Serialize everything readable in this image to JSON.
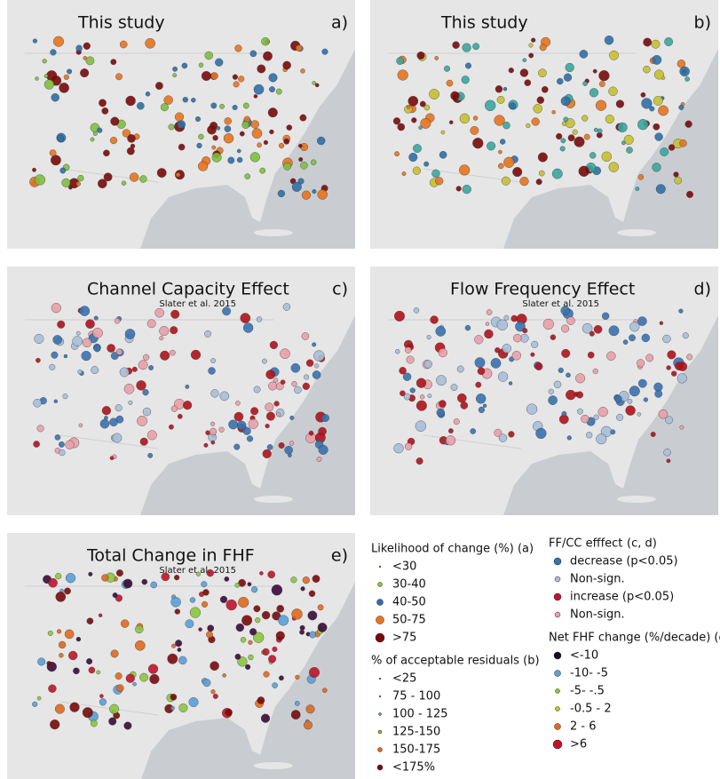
{
  "panels": [
    {
      "title": "This study",
      "letter": "a)"
    },
    {
      "title": "This study",
      "letter": "b)"
    },
    {
      "title": "Channel Capacity Effect",
      "subtitle": "Slater et al. 2015",
      "letter": "c)"
    },
    {
      "title": "Flow Frequency Effect",
      "subtitle": "Slater et al. 2015",
      "letter": "d)"
    },
    {
      "title": "Total Change in FHF",
      "subtitle": "Slater et al. 2015",
      "letter": "e)"
    }
  ],
  "legend": {
    "likelihood": {
      "title": "Likelihood of change (%) (a)",
      "items": [
        "<30",
        "30-40",
        "40-50",
        "50-75",
        ">75"
      ]
    },
    "residuals": {
      "title": "% of acceptable residuals (b)",
      "items": [
        "<25",
        "75 - 100",
        "100 - 125",
        "125-150",
        "150-175",
        "<175%"
      ]
    },
    "effect": {
      "title": "FF/CC efffect",
      "note": "(c, d)",
      "items": [
        "decrease (p<0.05)",
        "Non-sign.",
        "increase (p<0.05)",
        "Non-sign."
      ]
    },
    "net": {
      "title": "Net FHF change (%/decade) (e)",
      "items": [
        "<-10",
        "-10- -5",
        "-5- -.5",
        "-0.5 - 2",
        "2 - 6",
        ">6"
      ]
    }
  }
}
